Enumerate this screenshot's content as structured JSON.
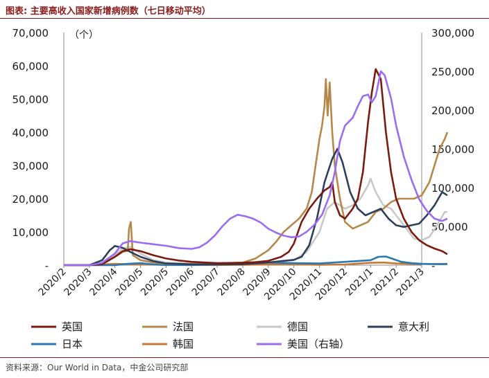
{
  "title": "图表: 主要高收入国家新增病例数（七日移动平均）",
  "source": "资料来源：Our World in Data，中金公司研究部",
  "chart_data": {
    "type": "line",
    "unit_label": "（个）",
    "x_ticks": [
      "2020/2",
      "2020/3",
      "2020/4",
      "2020/5",
      "2020/5",
      "2020/6",
      "2020/7",
      "2020/8",
      "2020/9",
      "2020/10",
      "2020/11",
      "2020/12",
      "2021/1",
      "2021/2",
      "2021/3"
    ],
    "left_axis": {
      "min": 0,
      "max": 70000,
      "ticks": [
        "-",
        "10,000",
        "20,000",
        "30,000",
        "40,000",
        "50,000",
        "60,000",
        "70,000"
      ]
    },
    "right_axis": {
      "min": 0,
      "max": 300000,
      "ticks": [
        "-",
        "50,000",
        "100,000",
        "150,000",
        "200,000",
        "250,000",
        "300,000"
      ]
    },
    "series": [
      {
        "name": "英国",
        "color": "#7a1a0f",
        "axis": "left",
        "points": [
          [
            0,
            0
          ],
          [
            1,
            0
          ],
          [
            1.5,
            300
          ],
          [
            2,
            2500
          ],
          [
            2.3,
            4200
          ],
          [
            2.6,
            4800
          ],
          [
            3,
            4200
          ],
          [
            3.5,
            3000
          ],
          [
            4,
            2000
          ],
          [
            4.5,
            1400
          ],
          [
            5,
            1000
          ],
          [
            6,
            600
          ],
          [
            7,
            700
          ],
          [
            7.5,
            900
          ],
          [
            8,
            1300
          ],
          [
            8.5,
            2500
          ],
          [
            8.8,
            4000
          ],
          [
            9,
            6500
          ],
          [
            9.3,
            13000
          ],
          [
            9.6,
            17000
          ],
          [
            9.9,
            20000
          ],
          [
            10.2,
            22500
          ],
          [
            10.4,
            23500
          ],
          [
            10.5,
            25000
          ],
          [
            10.6,
            19000
          ],
          [
            10.8,
            15000
          ],
          [
            11,
            14000
          ],
          [
            11.3,
            17000
          ],
          [
            11.5,
            20000
          ],
          [
            11.7,
            28000
          ],
          [
            11.9,
            43000
          ],
          [
            12.05,
            52000
          ],
          [
            12.2,
            59000
          ],
          [
            12.4,
            56000
          ],
          [
            12.6,
            40000
          ],
          [
            12.8,
            28000
          ],
          [
            13,
            20000
          ],
          [
            13.3,
            14000
          ],
          [
            13.6,
            10000
          ],
          [
            13.9,
            7500
          ],
          [
            14.2,
            6000
          ],
          [
            14.5,
            5000
          ],
          [
            14.8,
            4200
          ],
          [
            15,
            3300
          ]
        ]
      },
      {
        "name": "法国",
        "color": "#b5884a",
        "axis": "left",
        "points": [
          [
            0,
            0
          ],
          [
            1,
            0
          ],
          [
            1.5,
            500
          ],
          [
            2,
            2500
          ],
          [
            2.3,
            4000
          ],
          [
            2.5,
            4300
          ],
          [
            2.55,
            11000
          ],
          [
            2.62,
            13000
          ],
          [
            2.7,
            3000
          ],
          [
            3,
            1500
          ],
          [
            3.5,
            800
          ],
          [
            4,
            400
          ],
          [
            5,
            400
          ],
          [
            6,
            500
          ],
          [
            7,
            800
          ],
          [
            7.5,
            2000
          ],
          [
            8,
            4500
          ],
          [
            8.3,
            7000
          ],
          [
            8.6,
            10000
          ],
          [
            8.9,
            12000
          ],
          [
            9.2,
            14000
          ],
          [
            9.5,
            17000
          ],
          [
            9.7,
            22000
          ],
          [
            9.85,
            30000
          ],
          [
            10,
            38000
          ],
          [
            10.1,
            42000
          ],
          [
            10.2,
            48000
          ],
          [
            10.25,
            56000
          ],
          [
            10.32,
            45000
          ],
          [
            10.4,
            55000
          ],
          [
            10.5,
            40000
          ],
          [
            10.6,
            30000
          ],
          [
            10.8,
            20000
          ],
          [
            11,
            13000
          ],
          [
            11.3,
            11000
          ],
          [
            11.6,
            12000
          ],
          [
            11.9,
            13000
          ],
          [
            12.2,
            16000
          ],
          [
            12.5,
            17000
          ],
          [
            12.8,
            19000
          ],
          [
            13.1,
            20000
          ],
          [
            13.4,
            20000
          ],
          [
            13.7,
            20000
          ],
          [
            14,
            21000
          ],
          [
            14.3,
            25000
          ],
          [
            14.5,
            30000
          ],
          [
            14.7,
            35000
          ],
          [
            14.9,
            38000
          ],
          [
            15,
            40000
          ]
        ]
      },
      {
        "name": "德国",
        "color": "#c8c8c8",
        "axis": "left",
        "points": [
          [
            0,
            0
          ],
          [
            1,
            0
          ],
          [
            1.5,
            500
          ],
          [
            2,
            3000
          ],
          [
            2.3,
            5000
          ],
          [
            2.6,
            5500
          ],
          [
            3,
            3500
          ],
          [
            3.5,
            1500
          ],
          [
            4,
            800
          ],
          [
            5,
            400
          ],
          [
            6,
            400
          ],
          [
            7,
            500
          ],
          [
            8,
            800
          ],
          [
            9,
            1500
          ],
          [
            9.5,
            4000
          ],
          [
            10,
            10000
          ],
          [
            10.3,
            17000
          ],
          [
            10.6,
            19000
          ],
          [
            10.8,
            18000
          ],
          [
            11,
            17000
          ],
          [
            11.3,
            18000
          ],
          [
            11.6,
            20000
          ],
          [
            11.9,
            24000
          ],
          [
            12,
            26000
          ],
          [
            12.2,
            22000
          ],
          [
            12.5,
            18000
          ],
          [
            12.8,
            17000
          ],
          [
            13.1,
            14000
          ],
          [
            13.4,
            11000
          ],
          [
            13.7,
            8000
          ],
          [
            14,
            7500
          ],
          [
            14.3,
            8500
          ],
          [
            14.6,
            12000
          ],
          [
            14.9,
            16000
          ],
          [
            15,
            16000
          ]
        ]
      },
      {
        "name": "意大利",
        "color": "#2c3e5c",
        "axis": "left",
        "points": [
          [
            0,
            0
          ],
          [
            1,
            0
          ],
          [
            1.5,
            1500
          ],
          [
            1.8,
            4500
          ],
          [
            2,
            5800
          ],
          [
            2.3,
            5200
          ],
          [
            2.6,
            4000
          ],
          [
            3,
            2500
          ],
          [
            3.5,
            1200
          ],
          [
            4,
            500
          ],
          [
            5,
            250
          ],
          [
            6,
            200
          ],
          [
            7,
            300
          ],
          [
            8,
            800
          ],
          [
            8.5,
            1200
          ],
          [
            9,
            1600
          ],
          [
            9.3,
            2500
          ],
          [
            9.6,
            6000
          ],
          [
            9.9,
            14000
          ],
          [
            10.2,
            25000
          ],
          [
            10.5,
            32000
          ],
          [
            10.7,
            35000
          ],
          [
            10.9,
            31000
          ],
          [
            11.2,
            22000
          ],
          [
            11.5,
            17000
          ],
          [
            11.8,
            15000
          ],
          [
            12.1,
            16000
          ],
          [
            12.4,
            17000
          ],
          [
            12.7,
            14000
          ],
          [
            13,
            12000
          ],
          [
            13.3,
            11500
          ],
          [
            13.6,
            12000
          ],
          [
            13.9,
            12500
          ],
          [
            14.2,
            15000
          ],
          [
            14.5,
            18000
          ],
          [
            14.8,
            22000
          ],
          [
            15,
            21000
          ]
        ]
      },
      {
        "name": "日本",
        "color": "#2878b4",
        "axis": "left",
        "points": [
          [
            0,
            0
          ],
          [
            2,
            0
          ],
          [
            2.5,
            400
          ],
          [
            3,
            600
          ],
          [
            3.5,
            200
          ],
          [
            4,
            50
          ],
          [
            5,
            50
          ],
          [
            6,
            200
          ],
          [
            7,
            500
          ],
          [
            8,
            800
          ],
          [
            9,
            600
          ],
          [
            10,
            500
          ],
          [
            11,
            1000
          ],
          [
            12,
            1500
          ],
          [
            12.3,
            2500
          ],
          [
            12.6,
            2600
          ],
          [
            12.9,
            1800
          ],
          [
            13.2,
            1000
          ],
          [
            13.6,
            600
          ],
          [
            14,
            400
          ],
          [
            14.5,
            300
          ],
          [
            15,
            300
          ]
        ]
      },
      {
        "name": "韩国",
        "color": "#c87830",
        "axis": "left",
        "points": [
          [
            0,
            0
          ],
          [
            1,
            0
          ],
          [
            1.3,
            100
          ],
          [
            1.5,
            200
          ],
          [
            2,
            400
          ],
          [
            3,
            200
          ],
          [
            4,
            100
          ],
          [
            5,
            50
          ],
          [
            6,
            50
          ],
          [
            7,
            100
          ],
          [
            8,
            200
          ],
          [
            8.5,
            300
          ],
          [
            9,
            200
          ],
          [
            10,
            100
          ],
          [
            11,
            200
          ],
          [
            12,
            700
          ],
          [
            12.5,
            800
          ],
          [
            13,
            500
          ],
          [
            13.5,
            400
          ],
          [
            14,
            350
          ],
          [
            15,
            400
          ]
        ]
      },
      {
        "name": "美国（右轴）",
        "color": "#9b6bf0",
        "axis": "right",
        "points": [
          [
            0,
            0
          ],
          [
            1,
            0
          ],
          [
            1.5,
            3000
          ],
          [
            2,
            15000
          ],
          [
            2.3,
            28000
          ],
          [
            2.6,
            31000
          ],
          [
            3,
            29000
          ],
          [
            3.5,
            27000
          ],
          [
            4,
            25000
          ],
          [
            4.5,
            22000
          ],
          [
            5,
            21000
          ],
          [
            5.3,
            23000
          ],
          [
            5.6,
            29000
          ],
          [
            5.9,
            38000
          ],
          [
            6.2,
            50000
          ],
          [
            6.5,
            60000
          ],
          [
            6.8,
            65000
          ],
          [
            7.1,
            63000
          ],
          [
            7.4,
            60000
          ],
          [
            7.7,
            55000
          ],
          [
            8,
            47000
          ],
          [
            8.3,
            42000
          ],
          [
            8.6,
            38000
          ],
          [
            8.9,
            36000
          ],
          [
            9.2,
            37000
          ],
          [
            9.5,
            43000
          ],
          [
            9.8,
            52000
          ],
          [
            10.1,
            65000
          ],
          [
            10.4,
            90000
          ],
          [
            10.6,
            120000
          ],
          [
            10.8,
            160000
          ],
          [
            11,
            180000
          ],
          [
            11.3,
            190000
          ],
          [
            11.5,
            205000
          ],
          [
            11.7,
            218000
          ],
          [
            11.9,
            220000
          ],
          [
            12.05,
            210000
          ],
          [
            12.2,
            218000
          ],
          [
            12.4,
            250000
          ],
          [
            12.55,
            245000
          ],
          [
            12.8,
            215000
          ],
          [
            13,
            180000
          ],
          [
            13.3,
            140000
          ],
          [
            13.6,
            110000
          ],
          [
            13.9,
            85000
          ],
          [
            14.2,
            70000
          ],
          [
            14.5,
            60000
          ],
          [
            14.8,
            57000
          ],
          [
            15,
            60000
          ]
        ]
      }
    ],
    "legend": [
      [
        "英国",
        "法国",
        "德国",
        "意大利"
      ],
      [
        "日本",
        "韩国",
        "美国（右轴）"
      ]
    ]
  }
}
